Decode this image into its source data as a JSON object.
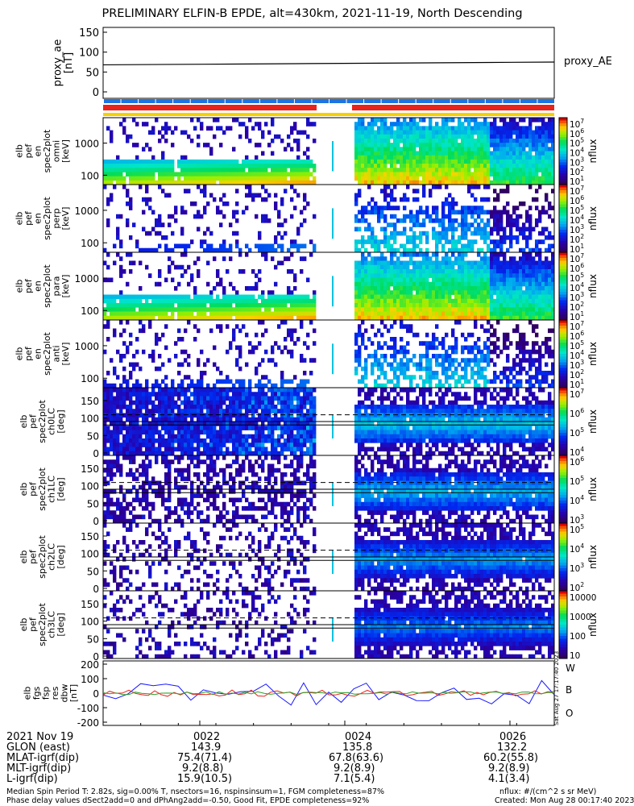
{
  "title": "PRELIMINARY ELFIN-B EPDE, alt=430km, 2021-11-19, North Descending",
  "colors": {
    "axis": "#000000",
    "ae_line": "#000000",
    "bar_blue": "#1e74e0",
    "bar_red": "#e8231b",
    "bar_yellow": "#f5d000",
    "bfield_w": "#e8231b",
    "bfield_b": "#2ca02c",
    "bfield_o": "#1a1aff"
  },
  "ae_panel": {
    "ylabel": "proxy_ae\n[nT]",
    "yticks": [
      "150",
      "100",
      "50",
      "0"
    ],
    "label": "proxy_AE",
    "values": [
      68,
      69,
      70,
      71,
      72,
      73,
      74,
      75
    ]
  },
  "spec_panels": [
    {
      "ylabel": "elb\npef\nen\nspec2plot\nomni\n[keV]",
      "yticks": [
        "1000",
        "100"
      ],
      "zlabel": "nflux",
      "zticks": [
        "10^7",
        "10^6",
        "10^5",
        "10^4",
        "10^3",
        "10^2",
        "10^1"
      ]
    },
    {
      "ylabel": "elb\npef\nen\nspec2plot\nperp\n[keV]",
      "yticks": [
        "1000",
        "100"
      ],
      "zlabel": "nflux",
      "zticks": [
        "10^7",
        "10^6",
        "10^5",
        "10^4",
        "10^3",
        "10^2",
        "10^1"
      ]
    },
    {
      "ylabel": "elb\npef\nen\nspec2plot\npara\n[keV]",
      "yticks": [
        "1000",
        "100"
      ],
      "zlabel": "nflux",
      "zticks": [
        "10^7",
        "10^6",
        "10^5",
        "10^4",
        "10^3",
        "10^2",
        "10^1"
      ]
    },
    {
      "ylabel": "elb\npef\nen\nspec2plot\nanti\n[keV]",
      "yticks": [
        "1000",
        "100"
      ],
      "zlabel": "nflux",
      "zticks": [
        "10^7",
        "10^6",
        "10^5",
        "10^4",
        "10^3",
        "10^2",
        "10^1"
      ]
    },
    {
      "ylabel": "elb\npef\nspec2plot\nch0LC\n[deg]",
      "yticks": [
        "150",
        "100",
        "50",
        "0"
      ],
      "zlabel": "nflux",
      "zticks": [
        "10^7",
        "10^6",
        "10^5",
        "10^4"
      ]
    },
    {
      "ylabel": "elb\npef\nspec2plot\nch1LC\n[deg]",
      "yticks": [
        "150",
        "100",
        "50",
        "0"
      ],
      "zlabel": "nflux",
      "zticks": [
        "10^6",
        "10^5",
        "10^4",
        "10^3"
      ]
    },
    {
      "ylabel": "elb\npef\nspec2plot\nch2LC\n[deg]",
      "yticks": [
        "150",
        "100",
        "50",
        "0"
      ],
      "zlabel": "nflux",
      "zticks": [
        "10^5",
        "10^4",
        "10^3",
        "10^2"
      ]
    },
    {
      "ylabel": "elb\npef\nspec2plot\nch3LC\n[deg]",
      "yticks": [
        "150",
        "100",
        "50",
        "0"
      ],
      "zlabel": "nflux",
      "zticks": [
        "10000",
        "1000",
        "100",
        "10"
      ]
    }
  ],
  "bfield_panel": {
    "ylabel": "elb\nfgs\nfsp\nres\ndbw\n[nT]",
    "yticks": [
      "200",
      "100",
      "0",
      "-100",
      "-200"
    ],
    "legend": [
      "W",
      "B",
      "O"
    ],
    "side_text": "Sat Aug 27 17:17:40 2023"
  },
  "time_axis": {
    "ticks": [
      "0022",
      "0024",
      "0026"
    ]
  },
  "ephemeris": {
    "rows": [
      {
        "label": "2021 Nov 19",
        "v": [
          "0022",
          "0024",
          "0026"
        ]
      },
      {
        "label": "GLON (east)",
        "v": [
          "143.9",
          "135.8",
          "132.2"
        ]
      },
      {
        "label": "MLAT-igrf(dip)",
        "v": [
          "75.4(71.4)",
          "67.8(63.6)",
          "60.2(55.8)"
        ]
      },
      {
        "label": "MLT-igrf(dip)",
        "v": [
          "9.2(8.8)",
          "9.2(8.9)",
          "9.2(8.9)"
        ]
      },
      {
        "label": "L-igrf(dip)",
        "v": [
          "15.9(10.5)",
          "7.1(5.4)",
          "4.1(3.4)"
        ]
      }
    ]
  },
  "footer": {
    "line1": "Median Spin Period T: 2.82s, sig=0.00% T, nsectors=16, nspinsinsum=1, FGM completeness=87%",
    "line2": "Phase delay values dSect2add=0 and dPhAng2add=-0.50, Good Fit, EPDE completeness=92%",
    "right1": "nflux: #/(cm^2 s sr MeV)",
    "right2": "Created: Mon Aug 28 00:17:40 2023"
  }
}
